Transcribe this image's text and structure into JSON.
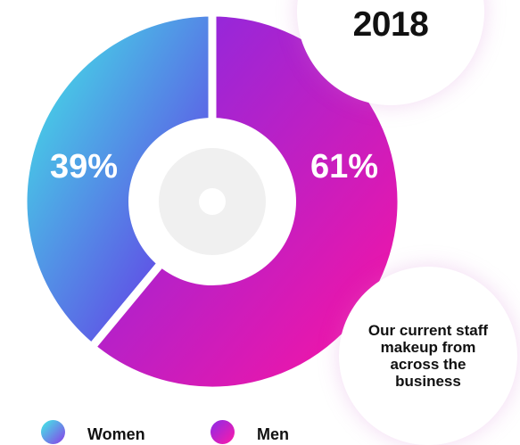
{
  "year_label": "2018",
  "caption": "Our current staff makeup from across the business",
  "chart_data": {
    "type": "pie",
    "title": "",
    "donut": true,
    "series": [
      {
        "name": "Women",
        "value": 39,
        "label": "39%"
      },
      {
        "name": "Men",
        "value": 61,
        "label": "61%"
      }
    ]
  },
  "legend": [
    {
      "label": "Women"
    },
    {
      "label": "Men"
    }
  ],
  "colors": {
    "women_start": "#3ff0e6",
    "women_end": "#6a1fe6",
    "men_start": "#7b2de8",
    "men_end": "#ff12a0",
    "center_ring": "#f0f0f0",
    "background": "#ffffff"
  }
}
